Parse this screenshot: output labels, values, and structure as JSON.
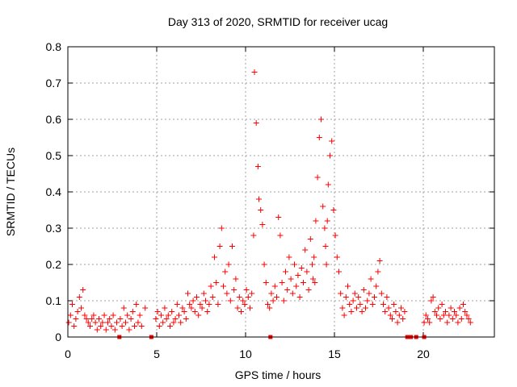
{
  "chart_data": {
    "type": "scatter",
    "title": "Day 313 of 2020, SRMTID for receiver ucag",
    "xlabel": "GPS time / hours",
    "ylabel": "SRMTID / TECUs",
    "xlim": [
      0,
      24
    ],
    "ylim": [
      0,
      0.8
    ],
    "x_ticks": [
      0,
      5,
      10,
      15,
      20
    ],
    "x_tick_labels": [
      "0",
      "5",
      "10",
      "15",
      "20"
    ],
    "y_ticks": [
      0,
      0.1,
      0.2,
      0.3,
      0.4,
      0.5,
      0.6,
      0.7,
      0.8
    ],
    "y_tick_labels": [
      "0",
      "0.1",
      "0.2",
      "0.3",
      "0.4",
      "0.5",
      "0.6",
      "0.7",
      "0.8"
    ],
    "grid": true,
    "marker": "+",
    "series": [
      {
        "name": "SRMTID",
        "color": "#ff0000",
        "x": [
          0.05,
          0.15,
          0.25,
          0.35,
          0.45,
          0.55,
          0.65,
          0.75,
          0.85,
          0.95,
          1.05,
          1.15,
          1.25,
          1.35,
          1.45,
          1.55,
          1.65,
          1.75,
          1.85,
          1.95,
          2.05,
          2.15,
          2.25,
          2.35,
          2.45,
          2.55,
          2.65,
          2.75,
          2.95,
          3.05,
          3.15,
          3.25,
          3.35,
          3.45,
          3.55,
          3.65,
          3.75,
          3.85,
          3.95,
          4.05,
          4.15,
          4.35,
          4.95,
          5.05,
          5.15,
          5.25,
          5.35,
          5.45,
          5.55,
          5.65,
          5.75,
          5.85,
          5.95,
          6.05,
          6.15,
          6.25,
          6.35,
          6.45,
          6.55,
          6.65,
          6.75,
          6.85,
          6.95,
          7.05,
          7.15,
          7.25,
          7.35,
          7.45,
          7.55,
          7.65,
          7.75,
          7.85,
          7.95,
          8.05,
          8.15,
          8.25,
          8.35,
          8.45,
          8.55,
          8.65,
          8.75,
          8.85,
          8.95,
          9.05,
          9.15,
          9.25,
          9.35,
          9.45,
          9.55,
          9.65,
          9.75,
          9.85,
          9.95,
          10.05,
          10.15,
          10.25,
          10.35,
          10.45,
          10.5,
          10.6,
          10.7,
          10.75,
          10.85,
          10.95,
          11.05,
          11.15,
          11.25,
          11.35,
          11.45,
          11.55,
          11.65,
          11.75,
          11.85,
          11.95,
          12.05,
          12.15,
          12.25,
          12.35,
          12.45,
          12.55,
          12.65,
          12.75,
          12.85,
          12.95,
          13.05,
          13.15,
          13.25,
          13.35,
          13.45,
          13.55,
          13.65,
          13.75,
          13.8,
          13.85,
          13.9,
          13.95,
          14.05,
          14.15,
          14.25,
          14.35,
          14.45,
          14.5,
          14.55,
          14.6,
          14.65,
          14.75,
          14.85,
          14.95,
          15.05,
          15.15,
          15.25,
          15.35,
          15.45,
          15.55,
          15.65,
          15.75,
          15.85,
          15.95,
          16.05,
          16.15,
          16.25,
          16.35,
          16.45,
          16.55,
          16.65,
          16.75,
          16.85,
          16.95,
          17.05,
          17.15,
          17.25,
          17.35,
          17.45,
          17.55,
          17.65,
          17.75,
          17.85,
          17.95,
          18.05,
          18.15,
          18.25,
          18.35,
          18.45,
          18.55,
          18.65,
          18.75,
          18.85,
          18.95,
          20.05,
          20.15,
          20.25,
          20.35,
          20.45,
          20.55,
          20.65,
          20.75,
          20.85,
          20.95,
          21.05,
          21.15,
          21.25,
          21.35,
          21.45,
          21.55,
          21.65,
          21.75,
          21.85,
          21.95,
          22.05,
          22.15,
          22.25,
          22.35,
          22.45,
          22.55,
          22.65
        ],
        "y": [
          0.04,
          0.06,
          0.09,
          0.03,
          0.05,
          0.07,
          0.11,
          0.08,
          0.13,
          0.06,
          0.05,
          0.04,
          0.03,
          0.05,
          0.06,
          0.04,
          0.02,
          0.05,
          0.03,
          0.04,
          0.06,
          0.02,
          0.04,
          0.05,
          0.03,
          0.06,
          0.02,
          0.04,
          0.05,
          0.03,
          0.08,
          0.04,
          0.06,
          0.02,
          0.05,
          0.07,
          0.03,
          0.09,
          0.04,
          0.06,
          0.03,
          0.08,
          0.05,
          0.07,
          0.03,
          0.06,
          0.04,
          0.08,
          0.05,
          0.06,
          0.03,
          0.07,
          0.04,
          0.05,
          0.09,
          0.06,
          0.04,
          0.08,
          0.07,
          0.05,
          0.12,
          0.09,
          0.08,
          0.1,
          0.07,
          0.11,
          0.06,
          0.09,
          0.08,
          0.12,
          0.1,
          0.07,
          0.09,
          0.14,
          0.11,
          0.22,
          0.15,
          0.09,
          0.25,
          0.3,
          0.14,
          0.18,
          0.12,
          0.2,
          0.1,
          0.25,
          0.13,
          0.16,
          0.08,
          0.11,
          0.07,
          0.1,
          0.09,
          0.13,
          0.11,
          0.08,
          0.12,
          0.28,
          0.73,
          0.59,
          0.47,
          0.38,
          0.35,
          0.31,
          0.2,
          0.15,
          0.09,
          0.08,
          0.12,
          0.1,
          0.14,
          0.11,
          0.33,
          0.28,
          0.15,
          0.1,
          0.18,
          0.13,
          0.22,
          0.16,
          0.12,
          0.2,
          0.14,
          0.17,
          0.11,
          0.19,
          0.15,
          0.24,
          0.18,
          0.13,
          0.27,
          0.2,
          0.16,
          0.22,
          0.15,
          0.32,
          0.44,
          0.55,
          0.6,
          0.36,
          0.3,
          0.25,
          0.2,
          0.32,
          0.42,
          0.5,
          0.54,
          0.35,
          0.28,
          0.22,
          0.18,
          0.12,
          0.08,
          0.06,
          0.11,
          0.14,
          0.09,
          0.07,
          0.1,
          0.12,
          0.08,
          0.11,
          0.09,
          0.07,
          0.13,
          0.08,
          0.1,
          0.12,
          0.16,
          0.09,
          0.11,
          0.14,
          0.18,
          0.21,
          0.12,
          0.09,
          0.07,
          0.11,
          0.08,
          0.06,
          0.05,
          0.09,
          0.07,
          0.04,
          0.06,
          0.08,
          0.05,
          0.07,
          0.04,
          0.06,
          0.05,
          0.04,
          0.1,
          0.11,
          0.07,
          0.06,
          0.08,
          0.05,
          0.09,
          0.06,
          0.07,
          0.04,
          0.06,
          0.08,
          0.05,
          0.07,
          0.06,
          0.04,
          0.08,
          0.05,
          0.09,
          0.07,
          0.06,
          0.05,
          0.04
        ]
      }
    ],
    "gap_markers_x": [
      2.9,
      4.7,
      11.4,
      19.1,
      19.3,
      19.6,
      20.05
    ]
  }
}
